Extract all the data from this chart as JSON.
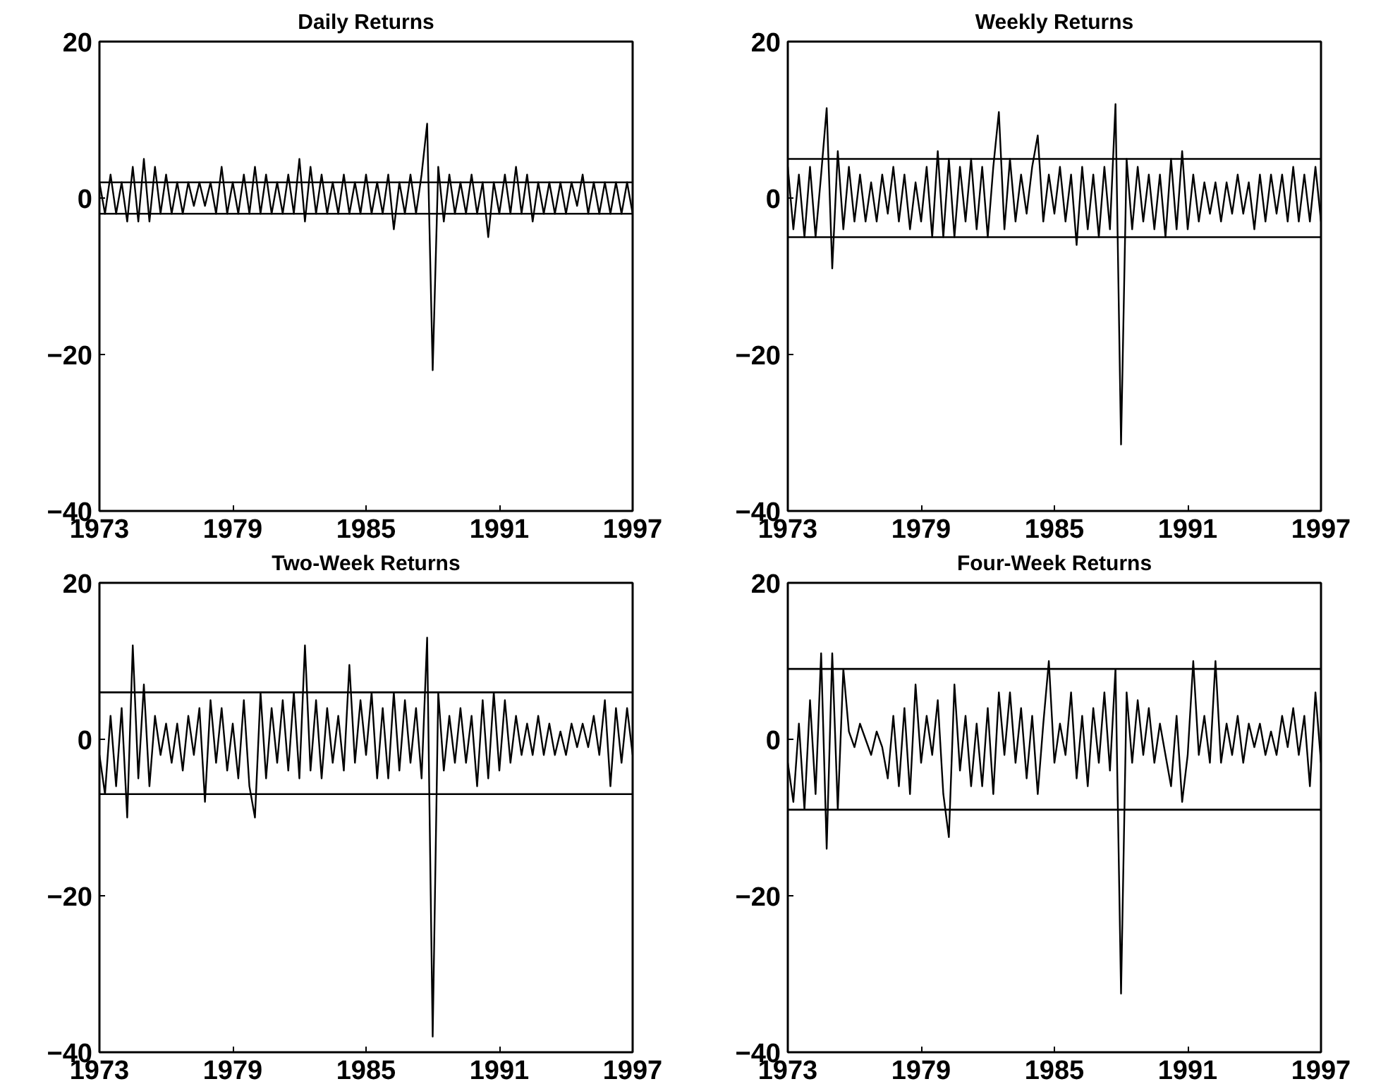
{
  "chart_data": [
    {
      "type": "line",
      "title": "Daily Returns",
      "xlim": [
        1973,
        1997
      ],
      "xticks": [
        1973,
        1979,
        1985,
        1991,
        1997
      ],
      "ylim": [
        -40,
        20
      ],
      "yticks": [
        -40,
        -20,
        0,
        20
      ],
      "grid": false,
      "marker": "none",
      "line_style": "solid",
      "x": [
        1973,
        1973.25,
        1973.5,
        1973.75,
        1974,
        1974.25,
        1974.5,
        1974.75,
        1975,
        1975.25,
        1975.5,
        1975.75,
        1976,
        1976.25,
        1976.5,
        1976.75,
        1977,
        1977.25,
        1977.5,
        1977.75,
        1978,
        1978.25,
        1978.5,
        1978.75,
        1979,
        1979.25,
        1979.5,
        1979.75,
        1980,
        1980.25,
        1980.5,
        1980.75,
        1981,
        1981.25,
        1981.5,
        1981.75,
        1982,
        1982.25,
        1982.5,
        1982.75,
        1983,
        1983.25,
        1983.5,
        1983.75,
        1984,
        1984.25,
        1984.5,
        1984.75,
        1985,
        1985.25,
        1985.5,
        1985.75,
        1986,
        1986.25,
        1986.5,
        1986.75,
        1987,
        1987.25,
        1987.5,
        1987.75,
        1988,
        1988.25,
        1988.5,
        1988.75,
        1989,
        1989.25,
        1989.5,
        1989.75,
        1990,
        1990.25,
        1990.5,
        1990.75,
        1991,
        1991.25,
        1991.5,
        1991.75,
        1992,
        1992.25,
        1992.5,
        1992.75,
        1993,
        1993.25,
        1993.5,
        1993.75,
        1994,
        1994.25,
        1994.5,
        1994.75,
        1995,
        1995.25,
        1995.5,
        1995.75,
        1996,
        1996.25,
        1996.5,
        1996.75,
        1997
      ],
      "series": [
        {
          "color": "#000000",
          "values": [
            2,
            -2,
            3,
            -2,
            2,
            -3,
            4,
            -3,
            5,
            -3,
            4,
            -2,
            3,
            -2,
            2,
            -2,
            2,
            -1,
            2,
            -1,
            2,
            -2,
            4,
            -2,
            2,
            -2,
            3,
            -2,
            4,
            -2,
            3,
            -2,
            2,
            -2,
            3,
            -2,
            5,
            -3,
            4,
            -2,
            3,
            -2,
            2,
            -2,
            3,
            -2,
            2,
            -2,
            3,
            -2,
            2,
            -2,
            3,
            -4,
            2,
            -2,
            3,
            -2,
            3,
            9.5,
            -22,
            4,
            -3,
            3,
            -2,
            2,
            -2,
            3,
            -2,
            2,
            -5,
            2,
            -2,
            3,
            -2,
            4,
            -2,
            3,
            -3,
            2,
            -2,
            2,
            -2,
            2,
            -2,
            2,
            -1,
            3,
            -2,
            2,
            -2,
            2,
            -2,
            2,
            -2,
            2,
            -2
          ]
        }
      ],
      "ref_lines": [
        {
          "axis": "y",
          "value": 2,
          "color": "#000000"
        },
        {
          "axis": "y",
          "value": -2,
          "color": "#000000"
        }
      ]
    },
    {
      "type": "line",
      "title": "Weekly Returns",
      "xlim": [
        1973,
        1997
      ],
      "xticks": [
        1973,
        1979,
        1985,
        1991,
        1997
      ],
      "ylim": [
        -40,
        20
      ],
      "yticks": [
        -40,
        -20,
        0,
        20
      ],
      "grid": false,
      "marker": "none",
      "line_style": "solid",
      "x": [
        1973,
        1973.25,
        1973.5,
        1973.75,
        1974,
        1974.25,
        1974.5,
        1974.75,
        1975,
        1975.25,
        1975.5,
        1975.75,
        1976,
        1976.25,
        1976.5,
        1976.75,
        1977,
        1977.25,
        1977.5,
        1977.75,
        1978,
        1978.25,
        1978.5,
        1978.75,
        1979,
        1979.25,
        1979.5,
        1979.75,
        1980,
        1980.25,
        1980.5,
        1980.75,
        1981,
        1981.25,
        1981.5,
        1981.75,
        1982,
        1982.25,
        1982.5,
        1982.75,
        1983,
        1983.25,
        1983.5,
        1983.75,
        1984,
        1984.25,
        1984.5,
        1984.75,
        1985,
        1985.25,
        1985.5,
        1985.75,
        1986,
        1986.25,
        1986.5,
        1986.75,
        1987,
        1987.25,
        1987.5,
        1987.75,
        1988,
        1988.25,
        1988.5,
        1988.75,
        1989,
        1989.25,
        1989.5,
        1989.75,
        1990,
        1990.25,
        1990.5,
        1990.75,
        1991,
        1991.25,
        1991.5,
        1991.75,
        1992,
        1992.25,
        1992.5,
        1992.75,
        1993,
        1993.25,
        1993.5,
        1993.75,
        1994,
        1994.25,
        1994.5,
        1994.75,
        1995,
        1995.25,
        1995.5,
        1995.75,
        1996,
        1996.25,
        1996.5,
        1996.75,
        1997
      ],
      "series": [
        {
          "color": "#000000",
          "values": [
            4,
            -4,
            3,
            -5,
            4,
            -5,
            3,
            11.5,
            -9,
            6,
            -4,
            4,
            -3,
            3,
            -3,
            2,
            -3,
            3,
            -2,
            4,
            -3,
            3,
            -4,
            2,
            -3,
            4,
            -5,
            6,
            -5,
            5,
            -5,
            4,
            -3,
            5,
            -4,
            4,
            -5,
            4,
            11,
            -4,
            5,
            -3,
            3,
            -2,
            4,
            8,
            -3,
            3,
            -2,
            4,
            -3,
            3,
            -6,
            4,
            -4,
            3,
            -5,
            4,
            -4,
            12,
            -31.5,
            5,
            -4,
            4,
            -3,
            3,
            -4,
            3,
            -5,
            5,
            -4,
            6,
            -4,
            3,
            -3,
            2,
            -2,
            2,
            -3,
            2,
            -2,
            3,
            -2,
            2,
            -4,
            3,
            -3,
            3,
            -2,
            3,
            -3,
            4,
            -3,
            3,
            -3,
            4,
            -3
          ]
        }
      ],
      "ref_lines": [
        {
          "axis": "y",
          "value": 5,
          "color": "#000000"
        },
        {
          "axis": "y",
          "value": -5,
          "color": "#000000"
        }
      ]
    },
    {
      "type": "line",
      "title": "Two-Week Returns",
      "xlim": [
        1973,
        1997
      ],
      "xticks": [
        1973,
        1979,
        1985,
        1991,
        1997
      ],
      "ylim": [
        -40,
        20
      ],
      "yticks": [
        -40,
        -20,
        0,
        20
      ],
      "grid": false,
      "marker": "none",
      "line_style": "solid",
      "x": [
        1973,
        1973.25,
        1973.5,
        1973.75,
        1974,
        1974.25,
        1974.5,
        1974.75,
        1975,
        1975.25,
        1975.5,
        1975.75,
        1976,
        1976.25,
        1976.5,
        1976.75,
        1977,
        1977.25,
        1977.5,
        1977.75,
        1978,
        1978.25,
        1978.5,
        1978.75,
        1979,
        1979.25,
        1979.5,
        1979.75,
        1980,
        1980.25,
        1980.5,
        1980.75,
        1981,
        1981.25,
        1981.5,
        1981.75,
        1982,
        1982.25,
        1982.5,
        1982.75,
        1983,
        1983.25,
        1983.5,
        1983.75,
        1984,
        1984.25,
        1984.5,
        1984.75,
        1985,
        1985.25,
        1985.5,
        1985.75,
        1986,
        1986.25,
        1986.5,
        1986.75,
        1987,
        1987.25,
        1987.5,
        1987.75,
        1988,
        1988.25,
        1988.5,
        1988.75,
        1989,
        1989.25,
        1989.5,
        1989.75,
        1990,
        1990.25,
        1990.5,
        1990.75,
        1991,
        1991.25,
        1991.5,
        1991.75,
        1992,
        1992.25,
        1992.5,
        1992.75,
        1993,
        1993.25,
        1993.5,
        1993.75,
        1994,
        1994.25,
        1994.5,
        1994.75,
        1995,
        1995.25,
        1995.5,
        1995.75,
        1996,
        1996.25,
        1996.5,
        1996.75,
        1997
      ],
      "series": [
        {
          "color": "#000000",
          "values": [
            -2,
            -7,
            3,
            -6,
            4,
            -10,
            12,
            -5,
            7,
            -6,
            3,
            -2,
            2,
            -3,
            2,
            -4,
            3,
            -2,
            4,
            -8,
            5,
            -3,
            4,
            -4,
            2,
            -5,
            5,
            -6,
            -10,
            6,
            -5,
            4,
            -3,
            5,
            -4,
            6,
            -5,
            12,
            -4,
            5,
            -5,
            4,
            -3,
            3,
            -4,
            9.5,
            -3,
            5,
            -2,
            6,
            -5,
            4,
            -5,
            6,
            -4,
            5,
            -3,
            4,
            -5,
            13,
            -38,
            6,
            -4,
            3,
            -3,
            4,
            -3,
            3,
            -6,
            5,
            -5,
            6,
            -4,
            5,
            -3,
            3,
            -2,
            2,
            -2,
            3,
            -2,
            2,
            -2,
            1,
            -2,
            2,
            -1,
            2,
            -1,
            3,
            -2,
            5,
            -6,
            4,
            -3,
            4,
            -2
          ]
        }
      ],
      "ref_lines": [
        {
          "axis": "y",
          "value": 6,
          "color": "#000000"
        },
        {
          "axis": "y",
          "value": -7,
          "color": "#000000"
        }
      ]
    },
    {
      "type": "line",
      "title": "Four-Week Returns",
      "xlim": [
        1973,
        1997
      ],
      "xticks": [
        1973,
        1979,
        1985,
        1991,
        1997
      ],
      "ylim": [
        -40,
        20
      ],
      "yticks": [
        -40,
        -20,
        0,
        20
      ],
      "grid": false,
      "marker": "none",
      "line_style": "solid",
      "x": [
        1973,
        1973.25,
        1973.5,
        1973.75,
        1974,
        1974.25,
        1974.5,
        1974.75,
        1975,
        1975.25,
        1975.5,
        1975.75,
        1976,
        1976.25,
        1976.5,
        1976.75,
        1977,
        1977.25,
        1977.5,
        1977.75,
        1978,
        1978.25,
        1978.5,
        1978.75,
        1979,
        1979.25,
        1979.5,
        1979.75,
        1980,
        1980.25,
        1980.5,
        1980.75,
        1981,
        1981.25,
        1981.5,
        1981.75,
        1982,
        1982.25,
        1982.5,
        1982.75,
        1983,
        1983.25,
        1983.5,
        1983.75,
        1984,
        1984.25,
        1984.5,
        1984.75,
        1985,
        1985.25,
        1985.5,
        1985.75,
        1986,
        1986.25,
        1986.5,
        1986.75,
        1987,
        1987.25,
        1987.5,
        1987.75,
        1988,
        1988.25,
        1988.5,
        1988.75,
        1989,
        1989.25,
        1989.5,
        1989.75,
        1990,
        1990.25,
        1990.5,
        1990.75,
        1991,
        1991.25,
        1991.5,
        1991.75,
        1992,
        1992.25,
        1992.5,
        1992.75,
        1993,
        1993.25,
        1993.5,
        1993.75,
        1994,
        1994.25,
        1994.5,
        1994.75,
        1995,
        1995.25,
        1995.5,
        1995.75,
        1996,
        1996.25,
        1996.5,
        1996.75,
        1997
      ],
      "series": [
        {
          "color": "#000000",
          "values": [
            -3,
            -8,
            2,
            -9,
            5,
            -7,
            11,
            -14,
            11,
            -9,
            9,
            1,
            -1,
            2,
            0,
            -2,
            1,
            -1,
            -5,
            3,
            -6,
            4,
            -7,
            7,
            -3,
            3,
            -2,
            5,
            -7,
            -12.5,
            7,
            -4,
            3,
            -6,
            2,
            -6,
            4,
            -7,
            6,
            -2,
            6,
            -3,
            4,
            -5,
            3,
            -7,
            2,
            10,
            -3,
            2,
            -2,
            6,
            -5,
            3,
            -6,
            4,
            -3,
            6,
            -4,
            9,
            -32.5,
            6,
            -3,
            5,
            -2,
            4,
            -3,
            2,
            -2,
            -6,
            3,
            -8,
            -2,
            10,
            -2,
            3,
            -3,
            10,
            -3,
            2,
            -2,
            3,
            -3,
            2,
            -1,
            2,
            -2,
            1,
            -2,
            3,
            -1,
            4,
            -2,
            3,
            -6,
            6,
            -3
          ]
        }
      ],
      "ref_lines": [
        {
          "axis": "y",
          "value": 9,
          "color": "#000000"
        },
        {
          "axis": "y",
          "value": -9,
          "color": "#000000"
        }
      ]
    }
  ]
}
